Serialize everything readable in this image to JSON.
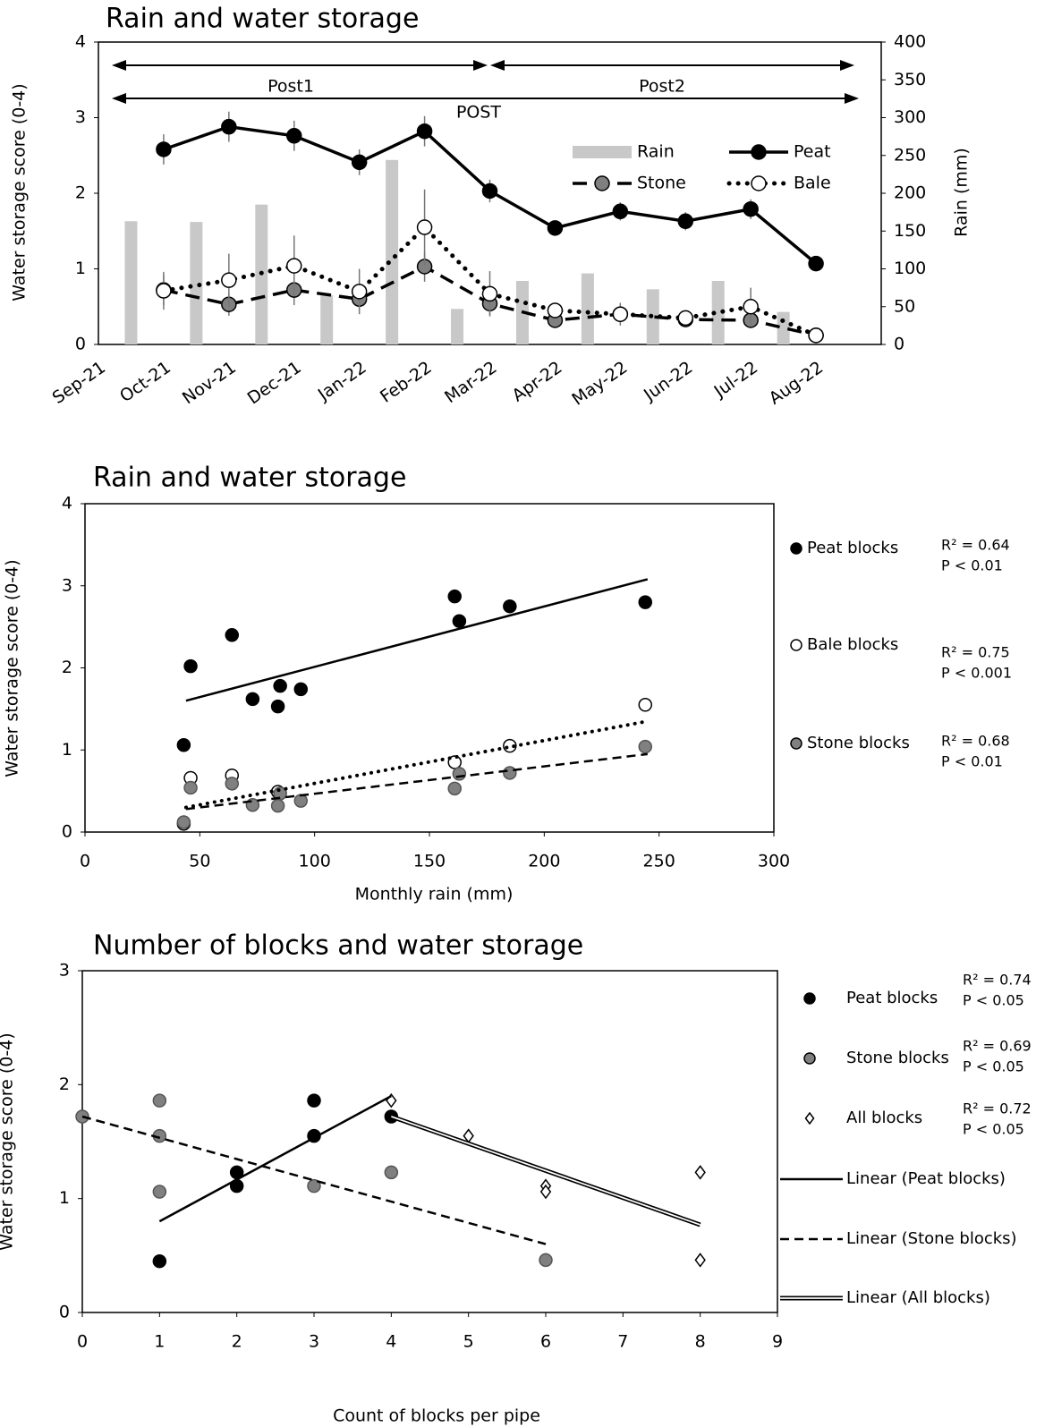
{
  "chart_data": [
    {
      "type": "combo",
      "title": "Rain and water storage",
      "y_label": "Water storage score (0-4)",
      "y2_label": "Rain (mm)",
      "categories": [
        "Sep-21",
        "Oct-21",
        "Nov-21",
        "Dec-21",
        "Jan-22",
        "Feb-22",
        "Mar-22",
        "Apr-22",
        "May-22",
        "Jun-22",
        "Jul-22",
        "Aug-22"
      ],
      "ylim": [
        0,
        4
      ],
      "yticks": [
        0,
        1,
        2,
        3,
        4
      ],
      "y2lim": [
        0,
        400
      ],
      "y2ticks": [
        0,
        50,
        100,
        150,
        200,
        250,
        300,
        350,
        400
      ],
      "series": [
        {
          "name": "Rain",
          "kind": "bar",
          "axis": "y2",
          "color": "#c8c8c8",
          "values": [
            163,
            162,
            185,
            65,
            244,
            47,
            84,
            94,
            73,
            84,
            43,
            null
          ]
        },
        {
          "name": "Peat",
          "kind": "line",
          "color": "#000000",
          "marker_fill": "#000000",
          "line_style": "solid",
          "values": [
            null,
            2.58,
            2.88,
            2.76,
            2.41,
            2.82,
            2.03,
            1.54,
            1.76,
            1.63,
            1.79,
            1.07
          ],
          "errors": [
            null,
            0.2,
            0.2,
            0.2,
            0.17,
            0.2,
            0.15,
            0.1,
            0.12,
            0.12,
            0.13,
            0.1
          ]
        },
        {
          "name": "Stone",
          "kind": "line",
          "color": "#000000",
          "marker_fill": "#808080",
          "line_style": "dashed",
          "values": [
            null,
            0.72,
            0.53,
            0.72,
            0.6,
            1.03,
            0.54,
            0.32,
            0.4,
            0.33,
            0.32,
            0.12
          ],
          "errors": [
            null,
            0.2,
            0.15,
            0.2,
            0.15,
            0.2,
            0.15,
            0.07,
            0.1,
            0.1,
            0.1,
            0.05
          ]
        },
        {
          "name": "Bale",
          "kind": "line",
          "color": "#000000",
          "marker_fill": "#ffffff",
          "line_style": "dotted",
          "values": [
            null,
            0.71,
            0.85,
            1.04,
            0.7,
            1.55,
            0.67,
            0.45,
            0.4,
            0.35,
            0.5,
            0.12
          ],
          "errors": [
            null,
            0.25,
            0.35,
            0.4,
            0.3,
            0.5,
            0.3,
            0.1,
            0.15,
            0.1,
            0.25,
            0.05
          ]
        }
      ],
      "annotations": [
        "Post1",
        "Post2",
        "POST"
      ]
    },
    {
      "type": "scatter",
      "title": "Rain and water storage",
      "x_label": "Monthly rain (mm)",
      "y_label": "Water storage score (0-4)",
      "xlim": [
        0,
        300
      ],
      "xticks": [
        0,
        50,
        100,
        150,
        200,
        250,
        300
      ],
      "ylim": [
        0,
        4
      ],
      "yticks": [
        0,
        1,
        2,
        3,
        4
      ],
      "series": [
        {
          "name": "Peat blocks",
          "marker": "circle",
          "marker_fill": "#000000",
          "line_style": "solid",
          "x": [
            43,
            46,
            64,
            73,
            84,
            85,
            94,
            161,
            163,
            185,
            244
          ],
          "values": [
            1.06,
            2.02,
            2.4,
            1.62,
            1.53,
            1.78,
            1.74,
            2.87,
            2.57,
            2.75,
            2.8
          ],
          "trend": {
            "x": [
              44,
              245
            ],
            "values": [
              1.6,
              3.08
            ]
          },
          "r2": "R² = 0.64",
          "p": "P < 0.01"
        },
        {
          "name": "Bale blocks",
          "marker": "circle",
          "marker_fill": "#ffffff",
          "line_style": "dotted",
          "x": [
            43,
            46,
            64,
            84,
            161,
            185,
            244
          ],
          "values": [
            0.1,
            0.66,
            0.69,
            0.49,
            0.85,
            1.05,
            1.55
          ],
          "trend": {
            "x": [
              44,
              245
            ],
            "values": [
              0.3,
              1.35
            ]
          },
          "r2": "R² = 0.75",
          "p": "P < 0.001"
        },
        {
          "name": "Stone blocks",
          "marker": "circle",
          "marker_fill": "#808080",
          "line_style": "dashed",
          "x": [
            43,
            46,
            64,
            73,
            84,
            85,
            94,
            161,
            163,
            185,
            244
          ],
          "values": [
            0.12,
            0.54,
            0.59,
            0.33,
            0.32,
            0.47,
            0.38,
            0.53,
            0.71,
            0.72,
            1.04
          ],
          "trend": {
            "x": [
              44,
              245
            ],
            "values": [
              0.28,
              0.95
            ]
          },
          "r2": "R² = 0.68",
          "p": "P < 0.01"
        }
      ]
    },
    {
      "type": "scatter",
      "title": "Number of blocks and water storage",
      "x_label": "Count of blocks per pipe",
      "y_label": "Water storage score (0-4)",
      "xlim": [
        0,
        9
      ],
      "xticks": [
        0,
        1,
        2,
        3,
        4,
        5,
        6,
        7,
        8,
        9
      ],
      "ylim": [
        0,
        3
      ],
      "yticks": [
        0,
        1,
        2,
        3
      ],
      "series": [
        {
          "name": "Peat blocks",
          "marker": "circle",
          "marker_fill": "#000000",
          "line_style": "solid",
          "x": [
            1,
            2,
            2,
            3,
            3,
            4
          ],
          "values": [
            0.45,
            1.23,
            1.11,
            1.55,
            1.86,
            1.72
          ],
          "trend": {
            "name": "Linear (Peat blocks)",
            "x": [
              1,
              4
            ],
            "values": [
              0.8,
              1.9
            ]
          },
          "r2": "R² = 0.74",
          "p": "P < 0.05"
        },
        {
          "name": "Stone blocks",
          "marker": "circle",
          "marker_fill": "#808080",
          "line_style": "dashed",
          "x": [
            0,
            1,
            1,
            1,
            3,
            4,
            6
          ],
          "values": [
            1.72,
            1.86,
            1.55,
            1.06,
            1.11,
            1.23,
            0.46
          ],
          "trend": {
            "name": "Linear (Stone blocks)",
            "x": [
              0,
              6
            ],
            "values": [
              1.72,
              0.6
            ]
          },
          "r2": "R² = 0.69",
          "p": "P < 0.05"
        },
        {
          "name": "All blocks",
          "marker": "diamond",
          "marker_fill": "#ffffff",
          "line_style": "double",
          "x": [
            4,
            5,
            6,
            6,
            8,
            8
          ],
          "values": [
            1.86,
            1.55,
            1.11,
            1.06,
            1.23,
            0.46
          ],
          "trend": {
            "name": "Linear (All blocks)",
            "x": [
              4,
              8
            ],
            "values": [
              1.72,
              0.77
            ]
          },
          "r2": "R² = 0.72",
          "p": "P < 0.05"
        }
      ]
    }
  ]
}
